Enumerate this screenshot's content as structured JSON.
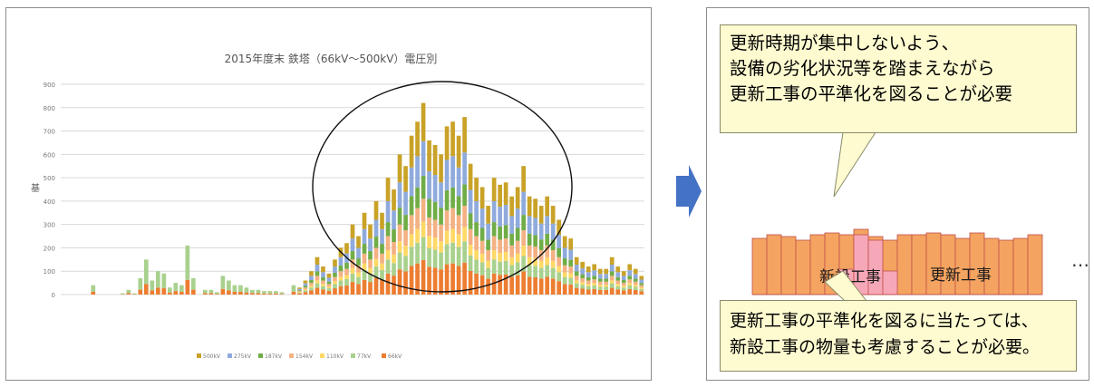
{
  "chart_data": {
    "type": "bar",
    "title": "2015年度末 鉄塔（66kV～500kV）電圧別",
    "ylabel": "基",
    "yticks": [
      "0",
      "100",
      "200",
      "300",
      "400",
      "500",
      "600",
      "700",
      "800",
      "900"
    ],
    "ylim": [
      0,
      900
    ],
    "legend": [
      "500kV",
      "275kV",
      "187kV",
      "154kV",
      "110kV",
      "77kV",
      "66kV"
    ],
    "legend_placement": "bottom",
    "stacked": true,
    "series_colors": [
      "#c9a227",
      "#8faadc",
      "#70ad47",
      "#f4b183",
      "#ffd966",
      "#a9d18e",
      "#ed7d31"
    ],
    "totals": [
      0,
      0,
      0,
      0,
      0,
      40,
      0,
      0,
      0,
      0,
      5,
      20,
      5,
      70,
      150,
      60,
      100,
      90,
      30,
      50,
      40,
      210,
      70,
      0,
      20,
      20,
      10,
      80,
      60,
      40,
      40,
      30,
      20,
      20,
      15,
      15,
      15,
      10,
      0,
      40,
      30,
      60,
      100,
      160,
      120,
      90,
      150,
      200,
      220,
      300,
      250,
      350,
      300,
      400,
      350,
      500,
      450,
      600,
      550,
      680,
      740,
      820,
      660,
      640,
      600,
      720,
      740,
      680,
      760,
      560,
      500,
      460,
      380,
      500,
      470,
      480,
      420,
      460,
      550,
      420,
      410,
      380,
      420,
      380,
      320,
      250,
      240,
      160,
      140,
      120,
      130,
      110,
      110,
      160,
      120,
      100,
      130,
      110,
      80
    ],
    "highlight_ellipse": true
  },
  "arrow": {
    "color": "#4472c4"
  },
  "top_callout": {
    "lines": [
      "更新時期が集中しないよう、",
      "設備の劣化状況等を踏まえながら",
      "更新工事の平準化を図ることが必要"
    ],
    "fill": "#fffbd0"
  },
  "bottom_callout": {
    "lines": [
      "更新工事の平準化を図るに当たっては、",
      "新設工事の物量も考慮することが必要。"
    ],
    "fill": "#fffbd0"
  },
  "levelled_bars": {
    "orange": "#f4a460",
    "pink": "#f7a8b8",
    "label_new": "新設工事",
    "label_renew": "更新工事",
    "ellipsis": "…"
  }
}
